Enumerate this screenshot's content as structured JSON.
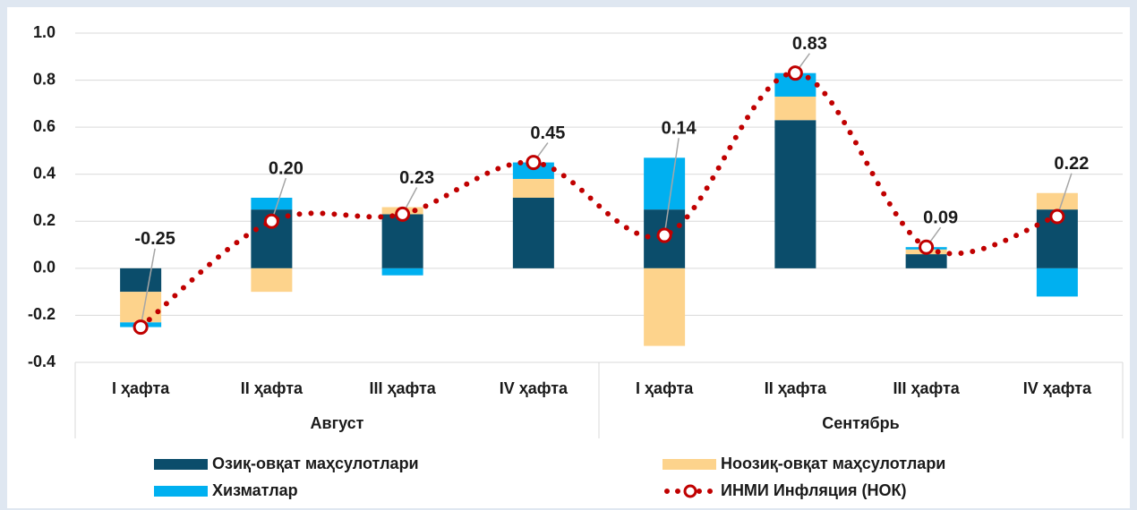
{
  "chart_data": {
    "type": "bar",
    "stacked": true,
    "categories": [
      "I ҳафта",
      "II ҳафта",
      "III ҳафта",
      "IV ҳафта",
      "I ҳафта",
      "II ҳафта",
      "III ҳафта",
      "IV ҳафта"
    ],
    "groups": [
      "Август",
      "Сентябрь"
    ],
    "series": [
      {
        "name": "Озиқ-овқат маҳсулотлари",
        "color": "#0b4d6b",
        "values": [
          -0.1,
          0.25,
          0.23,
          0.3,
          0.25,
          0.63,
          0.06,
          0.25
        ]
      },
      {
        "name": "Ноозиқ-овқат маҳсулотлари",
        "color": "#fdd38c",
        "values": [
          -0.13,
          -0.1,
          0.03,
          0.08,
          -0.33,
          0.1,
          0.02,
          0.07
        ]
      },
      {
        "name": "Хизматлар",
        "color": "#00b0f0",
        "values": [
          -0.02,
          0.05,
          -0.03,
          0.07,
          0.22,
          0.1,
          0.01,
          -0.12
        ]
      },
      {
        "name": "ИНМИ Инфляция (НОК)",
        "type": "line",
        "color": "#c00000",
        "values": [
          -0.25,
          0.2,
          0.23,
          0.45,
          0.14,
          0.83,
          0.09,
          0.22
        ],
        "value_labels": [
          "-0.25",
          "0.20",
          "0.23",
          "0.45",
          "0.14",
          "0.83",
          "0.09",
          "0.22"
        ]
      }
    ],
    "ylim": [
      -0.4,
      1.0
    ],
    "yticks": [
      {
        "value": 1,
        "label": "1.0"
      },
      0.8,
      0.6,
      0.4,
      0.2,
      {
        "value": 0,
        "label": "0.0"
      },
      -0.2,
      -0.4
    ],
    "grid": true,
    "legend": "bottom"
  }
}
